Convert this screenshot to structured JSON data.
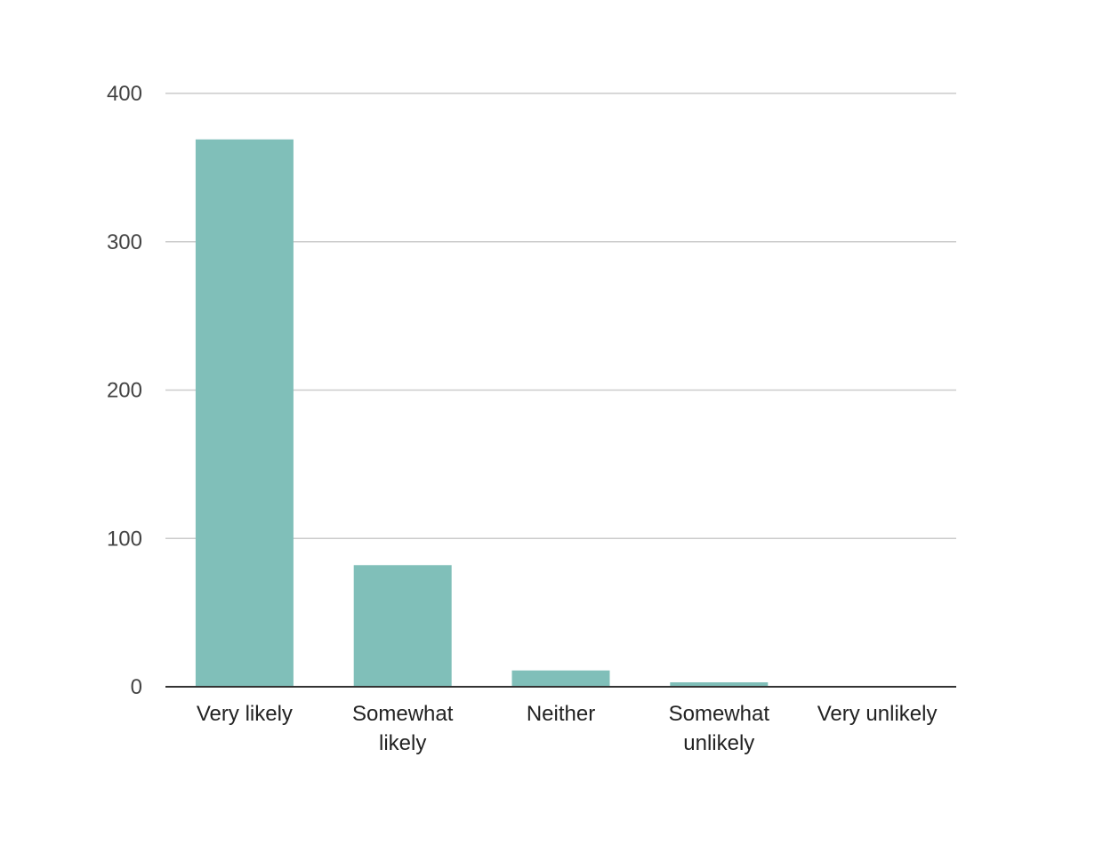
{
  "chart_data": {
    "type": "bar",
    "title": "",
    "xlabel": "",
    "ylabel": "",
    "categories": [
      "Very likely",
      "Somewhat likely",
      "Neither",
      "Somewhat unlikely",
      "Very unlikely"
    ],
    "category_lines": [
      [
        "Very likely"
      ],
      [
        "Somewhat",
        "likely"
      ],
      [
        "Neither"
      ],
      [
        "Somewhat",
        "unlikely"
      ],
      [
        "Very unlikely"
      ]
    ],
    "values": [
      369,
      82,
      11,
      3,
      0
    ],
    "ylim": [
      0,
      400
    ],
    "yticks": [
      0,
      100,
      200,
      300,
      400
    ],
    "grid": true,
    "legend": "none",
    "colors": {
      "bar": "#80bfb9",
      "grid": "#cccccc",
      "baseline": "#333333"
    }
  }
}
